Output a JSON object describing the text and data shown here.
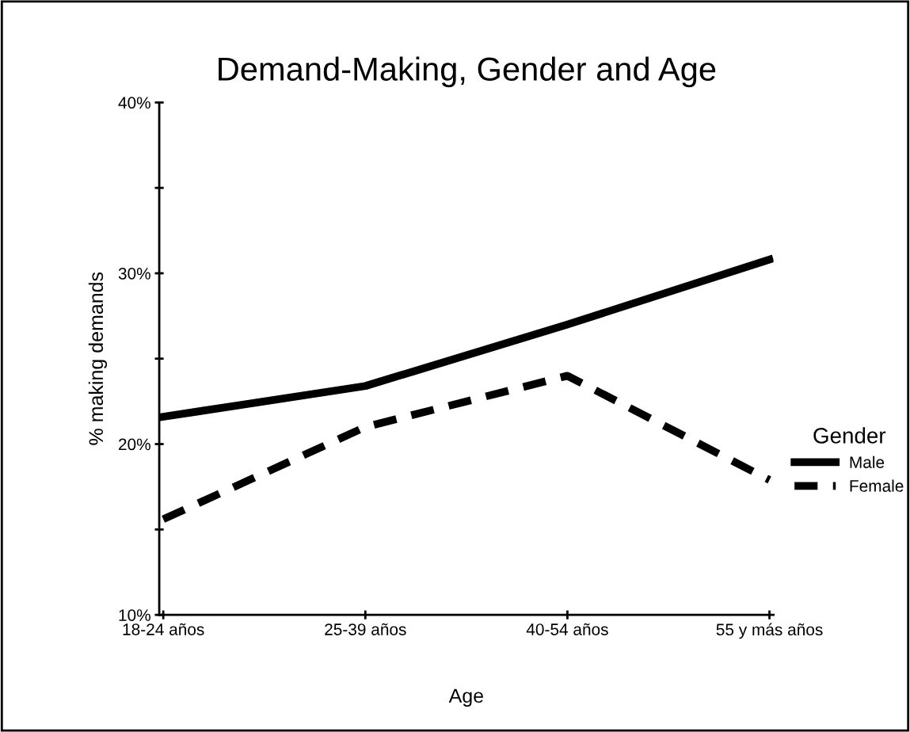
{
  "chart_data": {
    "type": "line",
    "title": "Demand-Making, Gender and Age",
    "xlabel": "Age",
    "ylabel": "% making demands",
    "legend_title": "Gender",
    "legend": "right",
    "categories": [
      "18-24 años",
      "25-39 años",
      "40-54 años",
      "55 y más años"
    ],
    "series": [
      {
        "name": "Male",
        "color": "#000000",
        "line_style": "solid",
        "values": [
          21.6,
          23.4,
          27.0,
          30.8
        ]
      },
      {
        "name": "Female",
        "color": "#000000",
        "line_style": "dashed",
        "values": [
          15.6,
          21.0,
          24.0,
          17.9
        ]
      }
    ],
    "ylim": [
      10,
      40
    ],
    "yticks": [
      {
        "value": 10,
        "label": "10%"
      },
      {
        "value": 15,
        "label": null
      },
      {
        "value": 20,
        "label": "20%"
      },
      {
        "value": 25,
        "label": null
      },
      {
        "value": 30,
        "label": "30%"
      },
      {
        "value": 35,
        "label": null
      },
      {
        "value": 40,
        "label": "40%"
      }
    ],
    "grid": false,
    "marker": "none"
  }
}
